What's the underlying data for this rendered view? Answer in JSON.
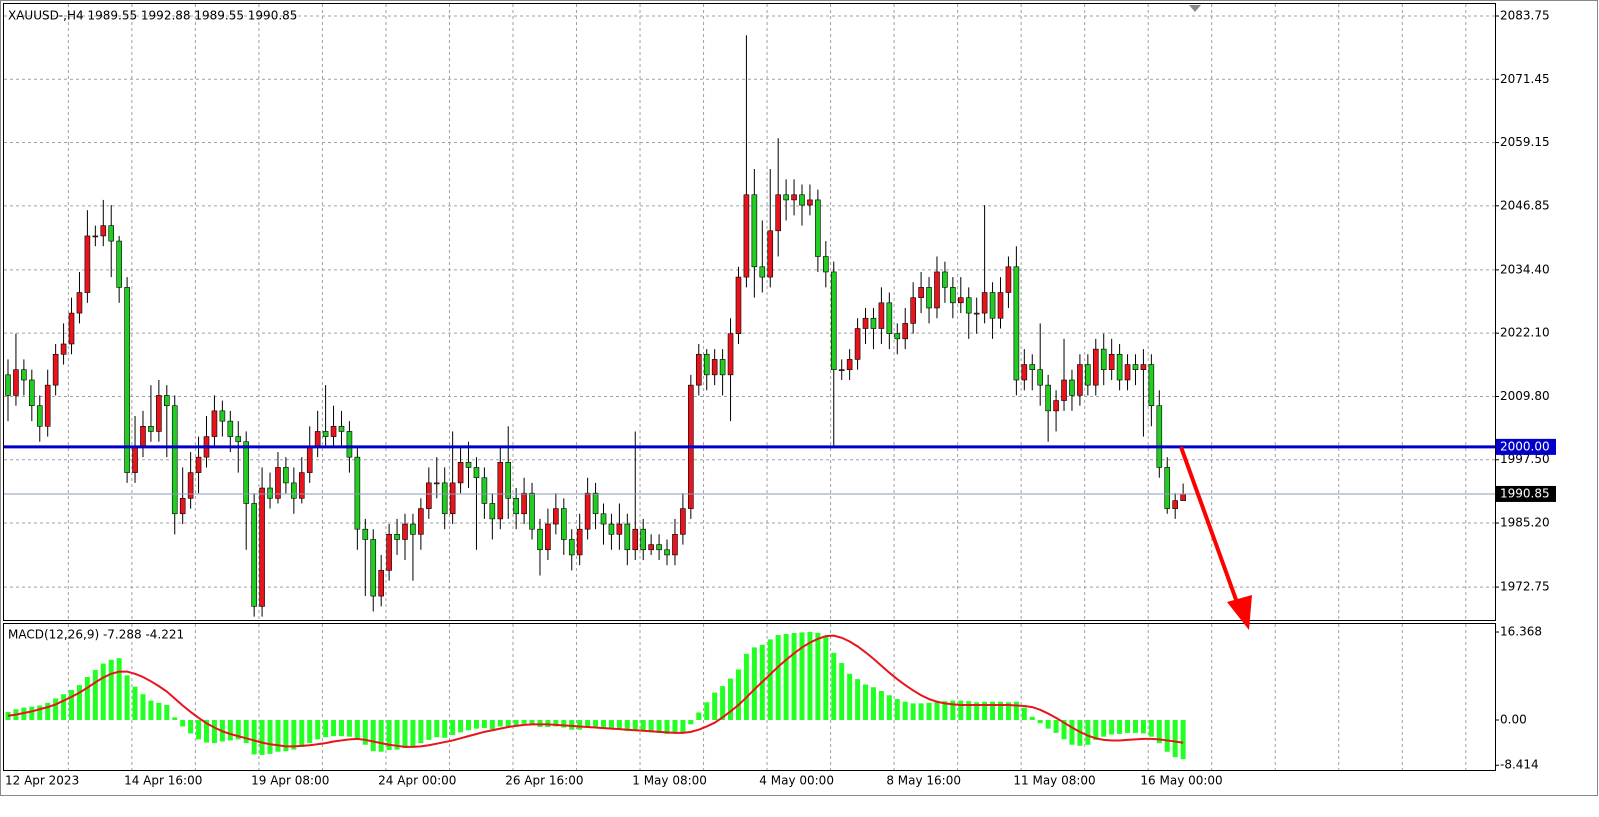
{
  "chart_data": [
    {
      "type": "candlestick",
      "title": "XAUUSD-,H4  1989.55 1992.88 1989.55 1990.85",
      "categories": [
        "12 Apr 2023",
        null,
        null,
        null,
        null,
        null,
        null,
        null,
        null,
        null,
        null,
        null,
        null,
        null,
        null,
        "14 Apr 16:00",
        null,
        null,
        null,
        null,
        null,
        null,
        null,
        null,
        null,
        null,
        null,
        null,
        null,
        null,
        null,
        "19 Apr 08:00",
        null,
        null,
        null,
        null,
        null,
        null,
        null,
        null,
        null,
        null,
        null,
        null,
        null,
        null,
        null,
        "24 Apr 00:00",
        null,
        null,
        null,
        null,
        null,
        null,
        null,
        null,
        null,
        null,
        null,
        null,
        null,
        null,
        null,
        "26 Apr 16:00",
        null,
        null,
        null,
        null,
        null,
        null,
        null,
        null,
        null,
        null,
        null,
        null,
        null,
        null,
        null,
        "1 May 08:00",
        null,
        null,
        null,
        null,
        null,
        null,
        null,
        null,
        null,
        null,
        null,
        null,
        null,
        null,
        null,
        "4 May 00:00",
        null,
        null,
        null,
        null,
        null,
        null,
        null,
        null,
        null,
        null,
        null,
        null,
        null,
        null,
        null,
        "8 May 16:00",
        null,
        null,
        null,
        null,
        null,
        null,
        null,
        null,
        null,
        null,
        null,
        null,
        null,
        null,
        null,
        "11 May 08:00",
        null,
        null,
        null,
        null,
        null,
        null,
        null,
        null,
        null,
        null,
        null,
        null,
        null,
        null,
        null,
        "16 May 00:00",
        null,
        null,
        null,
        null,
        null
      ],
      "open": [
        2014,
        2010,
        2015,
        2013,
        2008,
        2004,
        2012,
        2018,
        2020,
        2026,
        2030,
        2041,
        2041,
        2043,
        2040,
        2031,
        1995,
        2000,
        2004,
        2003,
        2010,
        2008,
        1987,
        1990,
        1995,
        1998,
        2002,
        2007,
        2005,
        2002,
        2001,
        1989,
        1969,
        1992,
        1990,
        1996,
        1993,
        1990,
        1995,
        2000,
        2003,
        2002,
        2004,
        2003,
        1998,
        1984,
        1982,
        1971,
        1976,
        1983,
        1982,
        1985,
        1983,
        1988,
        1993,
        1993,
        1987,
        1993,
        1997,
        1996,
        1994,
        1989,
        1986,
        1997,
        1990,
        1987,
        1991,
        1984,
        1980,
        1985,
        1988,
        1982,
        1979,
        1984,
        1991,
        1987,
        1985,
        1983,
        1985,
        1980,
        1984,
        1980,
        1981,
        1980,
        1979,
        1983,
        1988,
        2012,
        2018,
        2014,
        2017,
        2014,
        2022,
        2033,
        2049,
        2035,
        2033,
        2042,
        2049,
        2048,
        2049,
        2047,
        2048,
        2037,
        2034,
        2015,
        2015,
        2017,
        2023,
        2025,
        2023,
        2028,
        2022,
        2021,
        2024,
        2029,
        2031,
        2027,
        2034,
        2031,
        2028,
        2029,
        2026,
        2026,
        2030,
        2025,
        2030,
        2035,
        2013,
        2016,
        2015,
        2012,
        2007,
        2009,
        2013,
        2010,
        2016,
        2012,
        2019,
        2015,
        2018,
        2013,
        2016,
        2015,
        2016,
        2008,
        1996,
        1988,
        1989.55
      ],
      "high": [
        2017,
        2022,
        2017,
        2015,
        2010,
        2015,
        2020,
        2024,
        2029,
        2034,
        2046,
        2043,
        2048,
        2047,
        2041,
        2033,
        2006,
        2007,
        2012,
        2013,
        2012,
        2010,
        1996,
        1999,
        2002,
        2006,
        2010,
        2009,
        2007,
        2005,
        2003,
        1991,
        1996,
        1995,
        1999,
        1998,
        1996,
        1998,
        2004,
        2007,
        2012,
        2008,
        2007,
        2005,
        2000,
        1986,
        1984,
        1979,
        1985,
        1986,
        1987,
        1987,
        1990,
        1996,
        1998,
        1996,
        2003,
        2000,
        2001,
        1998,
        1996,
        1991,
        2000,
        2004,
        1992,
        1994,
        1993,
        1986,
        1988,
        1991,
        1990,
        1984,
        1987,
        1994,
        1993,
        1989,
        1987,
        1989,
        1987,
        2003,
        1986,
        1983,
        1983,
        1982,
        1986,
        1991,
        2014,
        2020,
        2019,
        2019,
        2019,
        2025,
        2035,
        2080,
        2054,
        2044,
        2054,
        2060,
        2052,
        2052,
        2051,
        2051,
        2050,
        2040,
        2036,
        2017,
        2019,
        2025,
        2027,
        2027,
        2031,
        2030,
        2024,
        2027,
        2032,
        2034,
        2033,
        2037,
        2036,
        2033,
        2033,
        2031,
        2029,
        2047,
        2032,
        2033,
        2037,
        2039,
        2019,
        2018,
        2024,
        2014,
        2011,
        2021,
        2015,
        2018,
        2018,
        2021,
        2022,
        2021,
        2020,
        2018,
        2018,
        2019,
        2018,
        2011,
        1998,
        1991,
        1992.88
      ],
      "low": [
        2005,
        2008,
        2010,
        2005,
        2001,
        2002,
        2010,
        2016,
        2018,
        2024,
        2028,
        2039,
        2039,
        2033,
        2028,
        1993,
        1993,
        1998,
        2001,
        2001,
        1998,
        1983,
        1985,
        1988,
        1991,
        1996,
        2000,
        2002,
        1999,
        1995,
        1980,
        1967,
        1967,
        1988,
        1989,
        1991,
        1987,
        1989,
        1993,
        1998,
        2000,
        2000,
        2000,
        1995,
        1980,
        1971,
        1968,
        1969,
        1974,
        1979,
        1978,
        1974,
        1980,
        1986,
        1990,
        1984,
        1985,
        1991,
        1992,
        1980,
        1986,
        1982,
        1984,
        1986,
        1984,
        1985,
        1982,
        1975,
        1978,
        1983,
        1979,
        1976,
        1977,
        1982,
        1984,
        1981,
        1980,
        1980,
        1977,
        1978,
        1978,
        1979,
        1978,
        1977,
        1977,
        1981,
        1986,
        2010,
        2011,
        2012,
        2010,
        2005,
        2020,
        2031,
        2029,
        2030,
        2031,
        2037,
        2044,
        2045,
        2043,
        2045,
        2034,
        2031,
        2000,
        2013,
        2013,
        2015,
        2020,
        2019,
        2020,
        2019,
        2018,
        2019,
        2022,
        2026,
        2024,
        2025,
        2028,
        2025,
        2026,
        2021,
        2022,
        2024,
        2021,
        2023,
        2027,
        2010,
        2011,
        2011,
        2008,
        2001,
        2003,
        2007,
        2007,
        2008,
        2010,
        2010,
        2012,
        2013,
        2011,
        2011,
        2012,
        2002,
        2004,
        1994,
        1987,
        1986,
        1989.55
      ],
      "close": [
        2010,
        2015,
        2013,
        2008,
        2004,
        2012,
        2018,
        2020,
        2026,
        2030,
        2041,
        2041,
        2043,
        2040,
        2031,
        1995,
        2000,
        2004,
        2003,
        2010,
        2008,
        1987,
        1990,
        1995,
        1998,
        2002,
        2007,
        2005,
        2002,
        2001,
        1989,
        1969,
        1992,
        1990,
        1996,
        1993,
        1990,
        1995,
        2000,
        2003,
        2002,
        2004,
        2003,
        1998,
        1984,
        1982,
        1971,
        1976,
        1983,
        1982,
        1985,
        1983,
        1988,
        1993,
        1993,
        1987,
        1993,
        1997,
        1996,
        1994,
        1989,
        1986,
        1997,
        1990,
        1987,
        1991,
        1984,
        1980,
        1985,
        1988,
        1982,
        1979,
        1984,
        1991,
        1987,
        1985,
        1983,
        1985,
        1980,
        1984,
        1980,
        1981,
        1980,
        1979,
        1983,
        1988,
        2012,
        2018,
        2014,
        2017,
        2014,
        2022,
        2033,
        2049,
        2035,
        2033,
        2042,
        2049,
        2048,
        2049,
        2047,
        2048,
        2037,
        2034,
        2015,
        2015,
        2017,
        2023,
        2025,
        2023,
        2028,
        2022,
        2021,
        2024,
        2029,
        2031,
        2027,
        2034,
        2031,
        2028,
        2029,
        2026,
        2026,
        2030,
        2025,
        2030,
        2035,
        2013,
        2016,
        2015,
        2012,
        2007,
        2009,
        2013,
        2010,
        2016,
        2012,
        2019,
        2015,
        2018,
        2013,
        2016,
        2015,
        2016,
        2008,
        1996,
        1988,
        1989.55,
        1990.85
      ],
      "up_color": "#e8141c",
      "down_color": "#22cc22",
      "ylim": [
        1966.35,
        2086.08
      ],
      "yticks": [
        2083.75,
        2071.45,
        2059.15,
        2046.85,
        {
          "value": 2034.4,
          "label": "2034.40"
        },
        {
          "value": 2022.1,
          "label": "2022.10"
        },
        {
          "value": 2009.8,
          "label": "2009.80"
        },
        {
          "value": 1997.5,
          "label": "1997.50"
        },
        {
          "value": 1985.2,
          "label": "1985.20"
        },
        1972.75
      ],
      "grid": true,
      "level_line": {
        "value": 2000,
        "label": "2000.00",
        "color": "#0000c8"
      },
      "current_price": {
        "value": 1990.85,
        "label": "1990.85"
      }
    },
    {
      "type": "macd",
      "title": "MACD(12,26,9) -7.288 -4.221",
      "series": [
        {
          "kind": "histogram",
          "color": "#22ff22",
          "values": [
            1.5,
            2,
            2.3,
            2.5,
            2.7,
            3.2,
            4,
            4.8,
            5.6,
            6.5,
            8,
            9.3,
            10.5,
            11.2,
            11.5,
            8.3,
            6.2,
            4.8,
            3.6,
            3.2,
            2.8,
            0.5,
            -1.2,
            -2.5,
            -3.6,
            -4.2,
            -4.3,
            -4.0,
            -3.8,
            -3.6,
            -4.3,
            -6.4,
            -6.5,
            -6.3,
            -5.9,
            -5.8,
            -5.5,
            -5.0,
            -4.3,
            -3.6,
            -3.2,
            -3.0,
            -3.0,
            -3.1,
            -3.6,
            -4.6,
            -5.8,
            -5.9,
            -5.6,
            -5.5,
            -5.2,
            -4.9,
            -4.3,
            -3.7,
            -3.2,
            -3.3,
            -2.8,
            -2.3,
            -1.9,
            -1.6,
            -1.5,
            -1.7,
            -1.2,
            -1.2,
            -1.0,
            -0.7,
            -0.9,
            -1.3,
            -1.3,
            -1.2,
            -1.4,
            -1.8,
            -1.8,
            -1.3,
            -1.2,
            -1.4,
            -1.6,
            -1.8,
            -2.0,
            -1.9,
            -2.1,
            -2.3,
            -2.4,
            -2.6,
            -2.5,
            -2.3,
            -0.8,
            1.4,
            3.3,
            5.1,
            6.3,
            7.7,
            9.4,
            12.3,
            13.5,
            14.0,
            15.0,
            15.8,
            16.0,
            16.2,
            16.3,
            16.4,
            16.2,
            15.5,
            12.5,
            10.6,
            8.6,
            7.6,
            6.6,
            6.1,
            5.4,
            4.6,
            3.9,
            3.4,
            3.1,
            3.1,
            3.2,
            3.3,
            3.5,
            3.6,
            3.6,
            3.5,
            3.3,
            3.4,
            3.4,
            3.4,
            3.3,
            3.4,
            2.3,
            0.6,
            -0.6,
            -1.6,
            -2.4,
            -3.6,
            -4.6,
            -4.8,
            -4.6,
            -3.7,
            -3.1,
            -2.7,
            -2.6,
            -2.4,
            -2.4,
            -2.5,
            -3.1,
            -4.3,
            -5.9,
            -6.9,
            -7.288
          ]
        },
        {
          "kind": "line",
          "color": "#e8141c",
          "values": [
            0.8,
            1.0,
            1.3,
            1.6,
            2.0,
            2.4,
            2.9,
            3.6,
            4.3,
            5.1,
            6.0,
            7.0,
            7.9,
            8.6,
            9.0,
            9.0,
            8.6,
            8.0,
            7.2,
            6.3,
            5.3,
            4.0,
            2.7,
            1.5,
            0.4,
            -0.6,
            -1.4,
            -2.1,
            -2.6,
            -3.0,
            -3.4,
            -3.8,
            -4.2,
            -4.5,
            -4.7,
            -4.9,
            -4.9,
            -4.8,
            -4.7,
            -4.5,
            -4.3,
            -4.0,
            -3.8,
            -3.6,
            -3.5,
            -3.7,
            -4.0,
            -4.3,
            -4.6,
            -4.8,
            -5.0,
            -5.0,
            -4.9,
            -4.7,
            -4.4,
            -4.1,
            -3.8,
            -3.4,
            -3.0,
            -2.6,
            -2.2,
            -1.9,
            -1.6,
            -1.3,
            -1.1,
            -0.9,
            -0.8,
            -0.8,
            -0.8,
            -0.9,
            -1.0,
            -1.1,
            -1.2,
            -1.3,
            -1.4,
            -1.5,
            -1.6,
            -1.7,
            -1.8,
            -1.9,
            -2.0,
            -2.1,
            -2.2,
            -2.3,
            -2.4,
            -2.4,
            -2.2,
            -1.8,
            -1.2,
            -0.5,
            0.5,
            1.6,
            2.8,
            4.2,
            5.7,
            7.1,
            8.5,
            9.9,
            11.2,
            12.4,
            13.5,
            14.4,
            15.1,
            15.6,
            15.7,
            15.3,
            14.6,
            13.7,
            12.6,
            11.4,
            10.1,
            8.8,
            7.6,
            6.5,
            5.5,
            4.6,
            3.9,
            3.4,
            3.1,
            2.9,
            2.8,
            2.8,
            2.8,
            2.8,
            2.8,
            2.8,
            2.8,
            2.7,
            2.6,
            2.4,
            1.9,
            1.2,
            0.4,
            -0.5,
            -1.4,
            -2.2,
            -2.9,
            -3.4,
            -3.7,
            -3.8,
            -3.8,
            -3.7,
            -3.6,
            -3.5,
            -3.5,
            -3.6,
            -3.8,
            -4.0,
            -4.221
          ]
        }
      ],
      "ylim": [
        -8.74,
        17.86
      ],
      "yticks": [
        16.368,
        {
          "value": 0,
          "label": "0.00"
        },
        -8.414
      ]
    }
  ]
}
